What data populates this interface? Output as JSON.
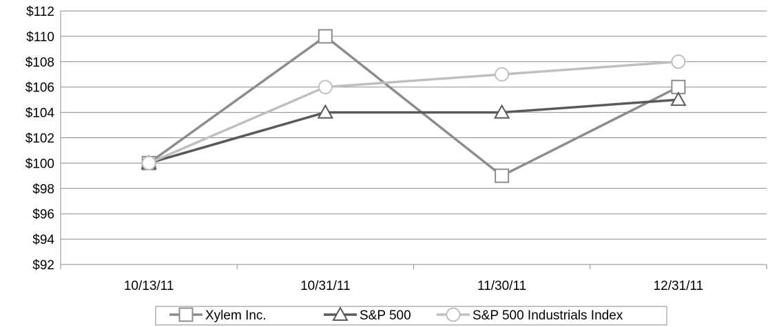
{
  "chart_data": {
    "type": "line",
    "title": "",
    "xlabel": "",
    "ylabel": "",
    "categories": [
      "10/13/11",
      "10/31/11",
      "11/30/11",
      "12/31/11"
    ],
    "ylim": [
      92,
      112
    ],
    "ytick_step": 2,
    "y_ticks": [
      "$92",
      "$94",
      "$96",
      "$98",
      "$100",
      "$102",
      "$104",
      "$106",
      "$108",
      "$110",
      "$112"
    ],
    "grid": "horizontal",
    "legend_position": "bottom",
    "series": [
      {
        "name": "Xylem Inc.",
        "values": [
          100,
          110,
          99,
          106
        ],
        "marker": "square",
        "color": "#8c8c8c"
      },
      {
        "name": "S&P 500",
        "values": [
          100,
          104,
          104,
          105
        ],
        "marker": "triangle",
        "color": "#595959"
      },
      {
        "name": "S&P 500 Industrials Index",
        "values": [
          100,
          106,
          107,
          108
        ],
        "marker": "circle",
        "color": "#bfbfbf"
      }
    ]
  }
}
